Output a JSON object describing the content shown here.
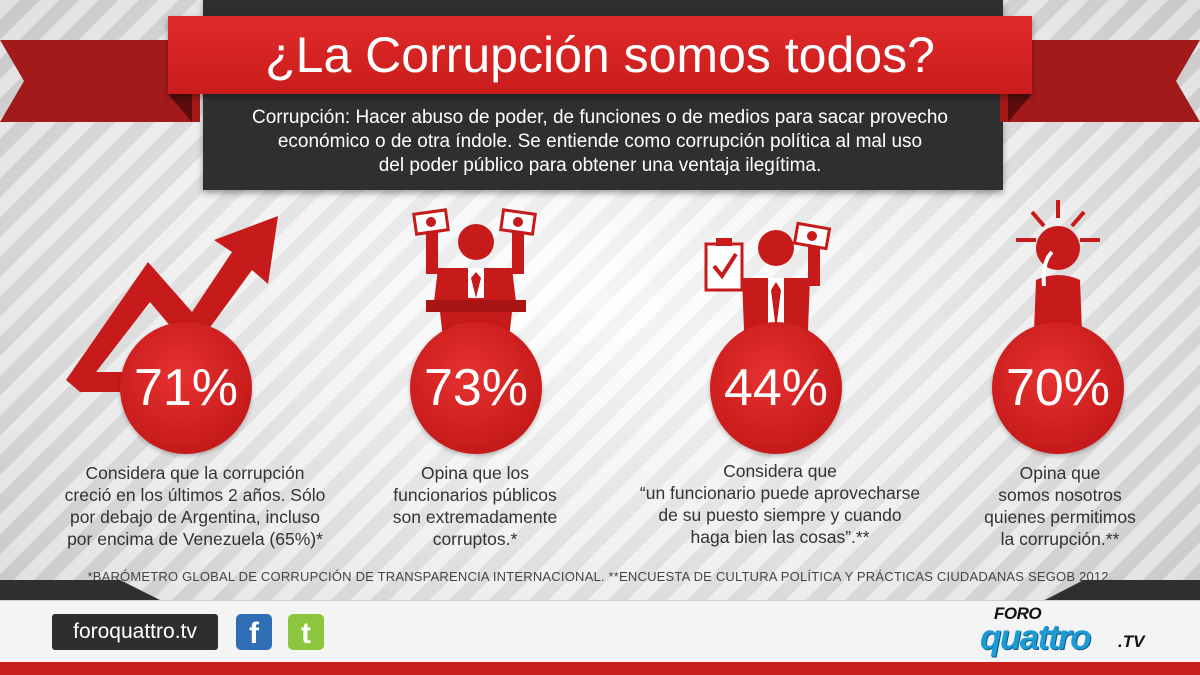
{
  "header": {
    "title": "¿La Corrupción somos todos?",
    "definition_lines": [
      "Corrupción: Hacer abuso de poder, de funciones o de medios para sacar provecho",
      "económico o de otra índole. Se entiende como corrupción política al mal uso",
      "del poder público para obtener una ventaja ilegítima."
    ]
  },
  "stats": [
    {
      "value": "71%",
      "lines": [
        "Considera que la corrupción",
        "creció en los últimos 2 años. Sólo",
        "por debajo de Argentina, incluso",
        "por encima de Venezuela (65%)*"
      ]
    },
    {
      "value": "73%",
      "lines": [
        "Opina que los",
        "funcionarios públicos",
        "son extremadamente",
        "corruptos.*"
      ]
    },
    {
      "value": "44%",
      "lines": [
        "Considera que",
        "“un funcionario puede aprovecharse",
        "de su puesto siempre y cuando",
        "haga bien las cosas”.**"
      ]
    },
    {
      "value": "70%",
      "lines": [
        "Opina que",
        "somos nosotros",
        "quienes permitimos",
        "la corrupción.**"
      ]
    }
  ],
  "footnote": "*BARÓMETRO GLOBAL DE CORRUPCIÓN DE TRANSPARENCIA INTERNACIONAL. **ENCUESTA DE CULTURA POLÍTICA Y PRÁCTICAS CIUDADANAS SEGOB 2012.",
  "footer": {
    "site": "foroquattro.tv",
    "facebook_glyph": "f",
    "twitter_glyph": "t",
    "logo_top": "FORO",
    "logo_main": "quattro",
    "logo_suffix": ".TV"
  },
  "colors": {
    "red": "#c91c1c",
    "dark": "#2f2f2f",
    "facebook": "#2f6db5",
    "twitter": "#8cc63f",
    "logo_blue": "#1d9bd7"
  },
  "icons": [
    "trend-arrow-icon",
    "politician-podium-icon",
    "politician-clipboard-icon",
    "thinking-person-icon"
  ]
}
